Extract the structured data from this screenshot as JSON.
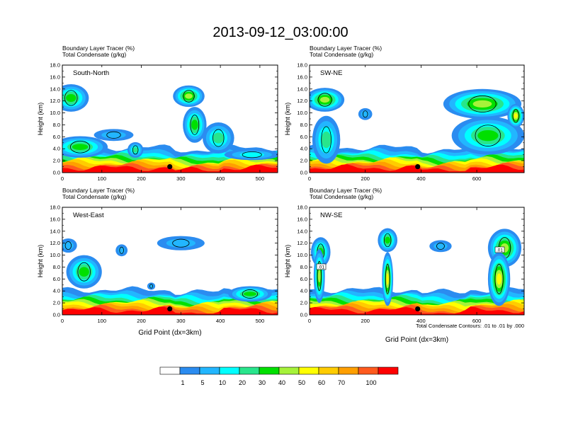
{
  "figure": {
    "title": "2013-09-12_03:00:00",
    "contour_note": "Total Condensate Contours: .01 to .01 by .000"
  },
  "colorbar": {
    "labels": [
      "1",
      "5",
      "10",
      "20",
      "30",
      "40",
      "50",
      "60",
      "70",
      "100"
    ],
    "colors": [
      "#ffffff",
      "#2b8cf0",
      "#22b6ff",
      "#00ffff",
      "#28e58c",
      "#00e000",
      "#a6f23a",
      "#ffff00",
      "#ffcc00",
      "#ff9f00",
      "#ff5a1e",
      "#ff0000"
    ]
  },
  "chart_data": [
    {
      "type": "heatmap",
      "panel": "South-North",
      "line1": "Boundary Layer Tracer   (%)",
      "line2": "Total Condensate   (g/kg)",
      "ylabel": "Height (km)",
      "xlabel": "",
      "xlim": [
        0,
        545
      ],
      "ylim": [
        0,
        18
      ],
      "xticks": [
        "0",
        "100",
        "200",
        "300",
        "400",
        "500"
      ],
      "xtick_values": [
        0,
        100,
        200,
        300,
        400,
        500
      ],
      "yticks": [
        "0.0",
        "2.0",
        "4.0",
        "6.0",
        "8.0",
        "10.0",
        "12.0",
        "14.0",
        "16.0",
        "18.0"
      ],
      "marker_x": 272,
      "marker_y": 1.0,
      "cloud_blobs": [
        {
          "x": 22,
          "y": 12.5,
          "rx": 45,
          "ry": 2.3,
          "level": 5
        },
        {
          "x": 45,
          "y": 4.3,
          "rx": 70,
          "ry": 1.8,
          "level": 5
        },
        {
          "x": 130,
          "y": 6.3,
          "rx": 50,
          "ry": 1.0,
          "level": 2
        },
        {
          "x": 185,
          "y": 3.8,
          "rx": 20,
          "ry": 1.3,
          "level": 4
        },
        {
          "x": 320,
          "y": 12.8,
          "rx": 40,
          "ry": 1.8,
          "level": 6
        },
        {
          "x": 335,
          "y": 8.0,
          "rx": 30,
          "ry": 3.0,
          "level": 5
        },
        {
          "x": 395,
          "y": 5.8,
          "rx": 40,
          "ry": 2.6,
          "level": 4
        },
        {
          "x": 480,
          "y": 3.0,
          "rx": 70,
          "ry": 0.9,
          "level": 3
        }
      ]
    },
    {
      "type": "heatmap",
      "panel": "SW-NE",
      "line1": "Boundary Layer Tracer   (%)",
      "line2": "Total Condensate   (g/kg)",
      "ylabel": "Height (km)",
      "xlabel": "",
      "xlim": [
        0,
        770
      ],
      "ylim": [
        0,
        18
      ],
      "xticks": [
        "0",
        "200",
        "400",
        "600"
      ],
      "xtick_values": [
        0,
        200,
        400,
        600
      ],
      "yticks": [
        "0.0",
        "2.0",
        "4.0",
        "6.0",
        "8.0",
        "10.0",
        "12.0",
        "14.0",
        "16.0",
        "18.0"
      ],
      "marker_x": 388,
      "marker_y": 1.0,
      "cloud_blobs": [
        {
          "x": 55,
          "y": 12.2,
          "rx": 70,
          "ry": 2.0,
          "level": 6
        },
        {
          "x": 60,
          "y": 5.5,
          "rx": 50,
          "ry": 4.0,
          "level": 4
        },
        {
          "x": 200,
          "y": 9.8,
          "rx": 25,
          "ry": 1.0,
          "level": 2
        },
        {
          "x": 620,
          "y": 11.5,
          "rx": 140,
          "ry": 2.5,
          "level": 6
        },
        {
          "x": 640,
          "y": 6.2,
          "rx": 130,
          "ry": 3.2,
          "level": 5
        },
        {
          "x": 740,
          "y": 9.5,
          "rx": 30,
          "ry": 2.0,
          "level": 7
        }
      ]
    },
    {
      "type": "heatmap",
      "panel": "West-East",
      "line1": "Boundary Layer Tracer   (%)",
      "line2": "Total Condensate   (g/kg)",
      "ylabel": "Height (km)",
      "xlabel": "Grid Point (dx=3km)",
      "xlim": [
        0,
        545
      ],
      "ylim": [
        0,
        18
      ],
      "xticks": [
        "0",
        "100",
        "200",
        "300",
        "400",
        "500"
      ],
      "xtick_values": [
        0,
        100,
        200,
        300,
        400,
        500
      ],
      "yticks": [
        "0.0",
        "2.0",
        "4.0",
        "6.0",
        "8.0",
        "10.0",
        "12.0",
        "14.0",
        "16.0",
        "18.0"
      ],
      "marker_x": 272,
      "marker_y": 1.0,
      "cloud_blobs": [
        {
          "x": 15,
          "y": 11.6,
          "rx": 22,
          "ry": 1.2,
          "level": 2
        },
        {
          "x": 55,
          "y": 7.2,
          "rx": 45,
          "ry": 2.8,
          "level": 5
        },
        {
          "x": 150,
          "y": 10.8,
          "rx": 15,
          "ry": 1.0,
          "level": 2
        },
        {
          "x": 300,
          "y": 12.0,
          "rx": 60,
          "ry": 1.2,
          "level": 2
        },
        {
          "x": 225,
          "y": 4.8,
          "rx": 10,
          "ry": 0.6,
          "level": 2
        },
        {
          "x": 475,
          "y": 3.5,
          "rx": 55,
          "ry": 1.3,
          "level": 5
        }
      ]
    },
    {
      "type": "heatmap",
      "panel": "NW-SE",
      "line1": "Boundary Layer Tracer   (%)",
      "line2": "Total Condensate   (g/kg)",
      "ylabel": "Height (km)",
      "xlabel": "Grid Point (dx=3km)",
      "xlim": [
        0,
        770
      ],
      "ylim": [
        0,
        18
      ],
      "xticks": [
        "0",
        "200",
        "400",
        "600"
      ],
      "xtick_values": [
        0,
        200,
        400,
        600
      ],
      "yticks": [
        "0.0",
        "2.0",
        "4.0",
        "6.0",
        "8.0",
        "10.0",
        "12.0",
        "14.0",
        "16.0",
        "18.0"
      ],
      "marker_x": 388,
      "marker_y": 1.0,
      "contour_labels": [
        ".01",
        ".01"
      ],
      "cloud_blobs": [
        {
          "x": 40,
          "y": 10.5,
          "rx": 35,
          "ry": 2.5,
          "level": 5
        },
        {
          "x": 35,
          "y": 6.5,
          "rx": 20,
          "ry": 4.5,
          "level": 6
        },
        {
          "x": 280,
          "y": 12.5,
          "rx": 35,
          "ry": 2.0,
          "level": 5
        },
        {
          "x": 280,
          "y": 6.0,
          "rx": 20,
          "ry": 4.5,
          "level": 7
        },
        {
          "x": 470,
          "y": 11.5,
          "rx": 40,
          "ry": 1.0,
          "level": 2
        },
        {
          "x": 700,
          "y": 11.2,
          "rx": 60,
          "ry": 3.2,
          "level": 6
        },
        {
          "x": 680,
          "y": 6.0,
          "rx": 40,
          "ry": 4.5,
          "level": 7
        }
      ]
    }
  ]
}
